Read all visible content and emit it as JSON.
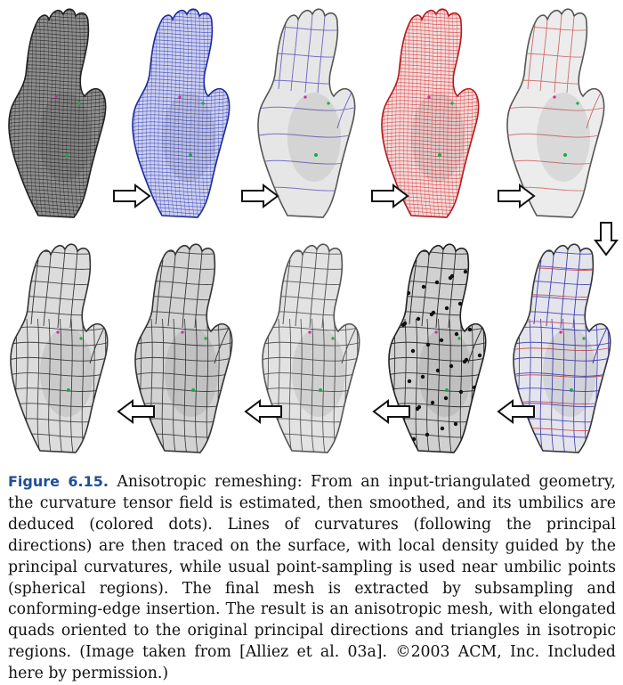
{
  "figure": {
    "panels_top": [
      {
        "name": "input-triangulated-mesh",
        "stroke": "#222222",
        "fill": "#8f8f8f",
        "lines": "#1a1a1a"
      },
      {
        "name": "curvature-tensor-field",
        "stroke": "#1a2a9a",
        "fill": "#cfd2ee",
        "lines": "#2a36b8"
      },
      {
        "name": "smoothed-tensor-field",
        "stroke": "#555555",
        "fill": "#e6e6e6",
        "lines": "#6a64c4"
      },
      {
        "name": "principal-directions-red",
        "stroke": "#b01818",
        "fill": "#f4dcdc",
        "lines": "#d42a2a"
      },
      {
        "name": "lines-of-curvature",
        "stroke": "#555555",
        "fill": "#ececec",
        "lines": "#d06a6a"
      }
    ],
    "panels_bottom": [
      {
        "name": "final-anisotropic-mesh",
        "stroke": "#333333",
        "fill": "#dcdcdc",
        "lines": "#333333"
      },
      {
        "name": "conforming-edge-mesh",
        "stroke": "#333333",
        "fill": "#d2d2d2",
        "lines": "#333333"
      },
      {
        "name": "subsampled-lines",
        "stroke": "#555555",
        "fill": "#e2e2e2",
        "lines": "#4a4a4a"
      },
      {
        "name": "sampled-vertices",
        "stroke": "#222222",
        "fill": "#d0d0d0",
        "lines": "#222222"
      },
      {
        "name": "traced-lines-blue-red",
        "stroke": "#333333",
        "fill": "#e4e4ec",
        "lines": "#3a3ab0"
      }
    ]
  },
  "caption": {
    "label": "Figure 6.15.",
    "text": "Anisotropic remeshing: From an input-triangulated geometry, the curvature tensor field is estimated, then smoothed, and its umbilics are deduced (colored dots). Lines of curvatures (following the principal directions) are then traced on the surface, with local density guided by the principal curvatures, while usual point-sampling is used near umbilic points (spherical regions). The final mesh is extracted by subsampling and conforming-edge insertion. The result is an anisotropic mesh, with elongated quads oriented to the original principal directions and triangles in isotropic regions. (Image taken from [Alliez et al. 03a]. ©2003 ACM, Inc. Included here by permission.)"
  }
}
